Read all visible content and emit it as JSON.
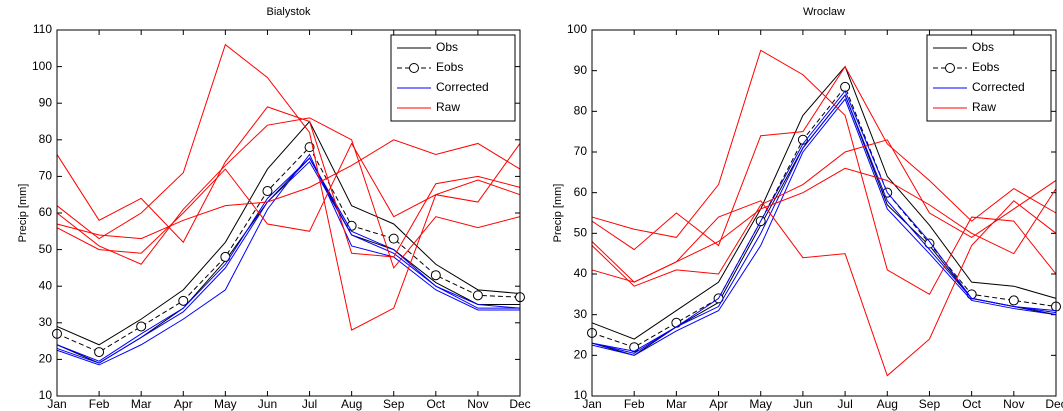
{
  "chart_data": [
    {
      "type": "line",
      "title": "Bialystok",
      "ylabel": "Precip [mm]",
      "categories": [
        "Jan",
        "Feb",
        "Mar",
        "Apr",
        "May",
        "Jun",
        "Jul",
        "Aug",
        "Sep",
        "Oct",
        "Nov",
        "Dec"
      ],
      "ylim": [
        10,
        110
      ],
      "yticks": [
        10,
        20,
        30,
        40,
        50,
        60,
        70,
        80,
        90,
        100,
        110
      ],
      "legend": "upper right",
      "series": [
        {
          "name": "Obs",
          "color": "#000000",
          "linestyle": "solid",
          "values": [
            [
              29,
              24,
              31,
              39,
              52,
              72,
              85,
              62,
              57,
              46,
              39,
              38
            ],
            [
              24,
              19,
              26,
              34,
              47,
              63,
              75,
              54,
              50,
              41,
              35,
              35
            ]
          ]
        },
        {
          "name": "Eobs",
          "color": "#000000",
          "linestyle": "dashed",
          "marker": "circle",
          "values": [
            [
              27,
              22,
              29,
              36,
              48,
              66,
              78,
              56.5,
              53,
              43,
              37.5,
              37
            ]
          ]
        },
        {
          "name": "Corrected",
          "color": "#0000ff",
          "linestyle": "solid",
          "values": [
            [
              24,
              19.5,
              27,
              34,
              46,
              64,
              75,
              55,
              50,
              40,
              35,
              34
            ],
            [
              23,
              19,
              26,
              33,
              45,
              63,
              74,
              54,
              49,
              40,
              34,
              34
            ],
            [
              22.5,
              18.5,
              24,
              31,
              39,
              61,
              76,
              51,
              48,
              39,
              33.5,
              33.5
            ]
          ]
        },
        {
          "name": "Raw",
          "color": "#ff0000",
          "linestyle": "solid",
          "values": [
            [
              76,
              58,
              64,
              52,
              74,
              89,
              85,
              49,
              48,
              68,
              70,
              67
            ],
            [
              62,
              53,
              60,
              71,
              106,
              97,
              82,
              28,
              34,
              65,
              69,
              65
            ],
            [
              60,
              51,
              46,
              61,
              73,
              84,
              86,
              80,
              45,
              59,
              56,
              59
            ],
            [
              57,
              54,
              53,
              58,
              62,
              63,
              67,
              73,
              80,
              76,
              79,
              72
            ],
            [
              56,
              50,
              49,
              60,
              72,
              57,
              55,
              79,
              59,
              65,
              63,
              79
            ]
          ]
        }
      ]
    },
    {
      "type": "line",
      "title": "Wroclaw",
      "ylabel": "Precip [mm]",
      "categories": [
        "Jan",
        "Feb",
        "Mar",
        "Apr",
        "May",
        "Jun",
        "Jul",
        "Aug",
        "Sep",
        "Oct",
        "Nov",
        "Dec"
      ],
      "ylim": [
        10,
        100
      ],
      "yticks": [
        10,
        20,
        30,
        40,
        50,
        60,
        70,
        80,
        90,
        100
      ],
      "legend": "upper right",
      "series": [
        {
          "name": "Obs",
          "color": "#000000",
          "linestyle": "solid",
          "values": [
            [
              28,
              24,
              31,
              38,
              56,
              79,
              91,
              64,
              52,
              38,
              37,
              34
            ],
            [
              23,
              20,
              27,
              33,
              52,
              71,
              84,
              57,
              47,
              34,
              32,
              30
            ]
          ]
        },
        {
          "name": "Eobs",
          "color": "#000000",
          "linestyle": "dashed",
          "marker": "circle",
          "values": [
            [
              25.5,
              22,
              28,
              34,
              53,
              73,
              86,
              60,
              47.5,
              35,
              33.5,
              32
            ]
          ]
        },
        {
          "name": "Corrected",
          "color": "#0000ff",
          "linestyle": "solid",
          "values": [
            [
              23,
              20.5,
              27,
              32,
              50,
              71,
              84,
              58,
              46,
              34,
              32,
              30.5
            ],
            [
              22.5,
              20,
              26,
              31,
              47,
              70,
              83,
              56,
              45,
              33.5,
              31.5,
              30
            ],
            [
              23,
              21,
              27,
              34,
              53,
              72,
              85,
              60,
              48,
              34,
              32,
              31
            ]
          ]
        },
        {
          "name": "Raw",
          "color": "#ff0000",
          "linestyle": "solid",
          "values": [
            [
              54,
              51,
              49,
              62,
              95,
              89,
              79,
              41,
              35,
              54,
              53,
              40
            ],
            [
              53,
              46,
              55,
              47,
              74,
              75,
              91,
              72,
              63,
              53,
              61,
              55
            ],
            [
              48,
              38,
              43,
              54,
              58,
              44,
              45,
              15,
              24,
              47,
              58,
              50
            ],
            [
              47,
              37,
              41,
              40,
              57,
              62,
              70,
              73,
              55,
              49,
              56,
              63
            ],
            [
              41,
              38,
              43,
              48,
              56,
              60,
              66,
              63,
              57,
              50,
              45,
              61
            ]
          ]
        }
      ]
    }
  ]
}
